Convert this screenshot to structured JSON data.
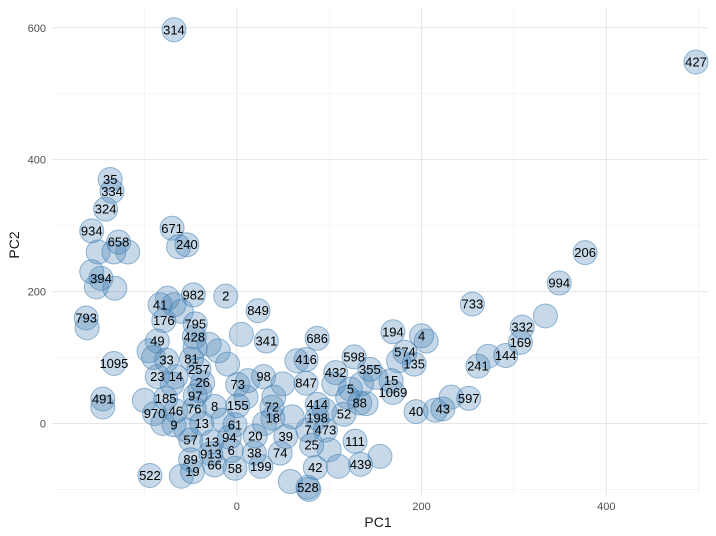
{
  "chart_data": {
    "type": "scatter",
    "xlabel": "PC1",
    "ylabel": "PC2",
    "xlim": [
      -200,
      510
    ],
    "ylim": [
      -110,
      630
    ],
    "x_ticks": [
      0,
      200,
      400
    ],
    "y_ticks": [
      0,
      200,
      400,
      600
    ],
    "x_tick_labels": [
      "0",
      "200",
      "400"
    ],
    "y_tick_labels": [
      "0",
      "200",
      "400",
      "600"
    ],
    "grid": true,
    "point_color": "#4682b4",
    "labeled_points": [
      {
        "label": "314",
        "x": -68,
        "y": 597
      },
      {
        "label": "427",
        "x": 497,
        "y": 548
      },
      {
        "label": "35",
        "x": -137,
        "y": 370
      },
      {
        "label": "334",
        "x": -135,
        "y": 352
      },
      {
        "label": "324",
        "x": -142,
        "y": 325
      },
      {
        "label": "934",
        "x": -157,
        "y": 292
      },
      {
        "label": "658",
        "x": -128,
        "y": 275
      },
      {
        "label": "671",
        "x": -70,
        "y": 296
      },
      {
        "label": "240",
        "x": -54,
        "y": 271
      },
      {
        "label": "394",
        "x": -147,
        "y": 220
      },
      {
        "label": "206",
        "x": 377,
        "y": 259
      },
      {
        "label": "994",
        "x": 349,
        "y": 213
      },
      {
        "label": "793",
        "x": -163,
        "y": 160
      },
      {
        "label": "982",
        "x": -47,
        "y": 195
      },
      {
        "label": "2",
        "x": -12,
        "y": 193
      },
      {
        "label": "849",
        "x": 23,
        "y": 171
      },
      {
        "label": "41",
        "x": -83,
        "y": 180
      },
      {
        "label": "733",
        "x": 255,
        "y": 181
      },
      {
        "label": "332",
        "x": 309,
        "y": 146
      },
      {
        "label": "176",
        "x": -79,
        "y": 156
      },
      {
        "label": "795",
        "x": -45,
        "y": 151
      },
      {
        "label": "428",
        "x": -46,
        "y": 131
      },
      {
        "label": "49",
        "x": -86,
        "y": 125
      },
      {
        "label": "194",
        "x": 169,
        "y": 139
      },
      {
        "label": "4",
        "x": 200,
        "y": 133
      },
      {
        "label": "686",
        "x": 87,
        "y": 129
      },
      {
        "label": "341",
        "x": 32,
        "y": 125
      },
      {
        "label": "169",
        "x": 307,
        "y": 123
      },
      {
        "label": "574",
        "x": 182,
        "y": 108
      },
      {
        "label": "1095",
        "x": -133,
        "y": 91
      },
      {
        "label": "598",
        "x": 127,
        "y": 101
      },
      {
        "label": "416",
        "x": 75,
        "y": 97
      },
      {
        "label": "144",
        "x": 291,
        "y": 103
      },
      {
        "label": "241",
        "x": 261,
        "y": 87
      },
      {
        "label": "33",
        "x": -76,
        "y": 96
      },
      {
        "label": "135",
        "x": 192,
        "y": 90
      },
      {
        "label": "257",
        "x": -41,
        "y": 82
      },
      {
        "label": "355",
        "x": 144,
        "y": 82
      },
      {
        "label": "432",
        "x": 107,
        "y": 77
      },
      {
        "label": "14",
        "x": -66,
        "y": 71
      },
      {
        "label": "23",
        "x": -86,
        "y": 71
      },
      {
        "label": "81",
        "x": -49,
        "y": 98
      },
      {
        "label": "98",
        "x": 29,
        "y": 71
      },
      {
        "label": "15",
        "x": 167,
        "y": 65
      },
      {
        "label": "26",
        "x": -37,
        "y": 62
      },
      {
        "label": "73",
        "x": 1,
        "y": 59
      },
      {
        "label": "847",
        "x": 75,
        "y": 61
      },
      {
        "label": "5",
        "x": 123,
        "y": 52
      },
      {
        "label": "1069",
        "x": 169,
        "y": 47
      },
      {
        "label": "491",
        "x": -145,
        "y": 37
      },
      {
        "label": "185",
        "x": -77,
        "y": 38
      },
      {
        "label": "97",
        "x": -45,
        "y": 42
      },
      {
        "label": "597",
        "x": 251,
        "y": 38
      },
      {
        "label": "88",
        "x": 133,
        "y": 31
      },
      {
        "label": "414",
        "x": 87,
        "y": 29
      },
      {
        "label": "46",
        "x": -66,
        "y": 19
      },
      {
        "label": "76",
        "x": -46,
        "y": 22
      },
      {
        "label": "8",
        "x": -24,
        "y": 26
      },
      {
        "label": "155",
        "x": 1,
        "y": 27
      },
      {
        "label": "72",
        "x": 38,
        "y": 25
      },
      {
        "label": "970",
        "x": -89,
        "y": 15
      },
      {
        "label": "40",
        "x": 194,
        "y": 18
      },
      {
        "label": "43",
        "x": 223,
        "y": 22
      },
      {
        "label": "52",
        "x": 116,
        "y": 14
      },
      {
        "label": "198",
        "x": 87,
        "y": 8
      },
      {
        "label": "18",
        "x": 39,
        "y": 8
      },
      {
        "label": "9",
        "x": -68,
        "y": -2
      },
      {
        "label": "13",
        "x": -38,
        "y": 0
      },
      {
        "label": "61",
        "x": -2,
        "y": -2
      },
      {
        "label": "7",
        "x": 77,
        "y": -10
      },
      {
        "label": "473",
        "x": 96,
        "y": -10
      },
      {
        "label": "20",
        "x": 20,
        "y": -19
      },
      {
        "label": "39",
        "x": 53,
        "y": -20
      },
      {
        "label": "94",
        "x": -8,
        "y": -21
      },
      {
        "label": "57",
        "x": -50,
        "y": -25
      },
      {
        "label": "13",
        "x": -27,
        "y": -28
      },
      {
        "label": "111",
        "x": 128,
        "y": -27
      },
      {
        "label": "25",
        "x": 81,
        "y": -33
      },
      {
        "label": "6",
        "x": -6,
        "y": -41
      },
      {
        "label": "913",
        "x": -28,
        "y": -46
      },
      {
        "label": "38",
        "x": 19,
        "y": -45
      },
      {
        "label": "74",
        "x": 47,
        "y": -45
      },
      {
        "label": "89",
        "x": -50,
        "y": -55
      },
      {
        "label": "66",
        "x": -24,
        "y": -63
      },
      {
        "label": "58",
        "x": -2,
        "y": -68
      },
      {
        "label": "199",
        "x": 26,
        "y": -65
      },
      {
        "label": "42",
        "x": 85,
        "y": -67
      },
      {
        "label": "439",
        "x": 134,
        "y": -62
      },
      {
        "label": "19",
        "x": -48,
        "y": -73
      },
      {
        "label": "522",
        "x": -94,
        "y": -79
      },
      {
        "label": "528",
        "x": 77,
        "y": -97
      }
    ],
    "unlabeled_points": [
      [
        -162,
        145
      ],
      [
        -157,
        230
      ],
      [
        -150,
        260
      ],
      [
        -133,
        260
      ],
      [
        -118,
        260
      ],
      [
        -132,
        205
      ],
      [
        -152,
        207
      ],
      [
        -145,
        25
      ],
      [
        -100,
        35
      ],
      [
        -95,
        110
      ],
      [
        -75,
        190
      ],
      [
        -68,
        180
      ],
      [
        -60,
        170
      ],
      [
        -63,
        268
      ],
      [
        -45,
        115
      ],
      [
        -30,
        120
      ],
      [
        -20,
        110
      ],
      [
        -10,
        90
      ],
      [
        5,
        135
      ],
      [
        12,
        65
      ],
      [
        40,
        40
      ],
      [
        50,
        60
      ],
      [
        65,
        95
      ],
      [
        105,
        60
      ],
      [
        120,
        40
      ],
      [
        135,
        60
      ],
      [
        150,
        70
      ],
      [
        175,
        95
      ],
      [
        205,
        125
      ],
      [
        215,
        20
      ],
      [
        232,
        40
      ],
      [
        272,
        102
      ],
      [
        334,
        163
      ],
      [
        155,
        -50
      ],
      [
        110,
        -65
      ],
      [
        78,
        -100
      ],
      [
        58,
        -88
      ],
      [
        -60,
        -80
      ],
      [
        -90,
        100
      ],
      [
        -70,
        60
      ],
      [
        -40,
        50
      ],
      [
        -80,
        0
      ],
      [
        -55,
        -10
      ],
      [
        -15,
        5
      ],
      [
        10,
        40
      ],
      [
        30,
        0
      ],
      [
        60,
        10
      ],
      [
        95,
        20
      ],
      [
        140,
        30
      ],
      [
        100,
        -40
      ]
    ]
  }
}
